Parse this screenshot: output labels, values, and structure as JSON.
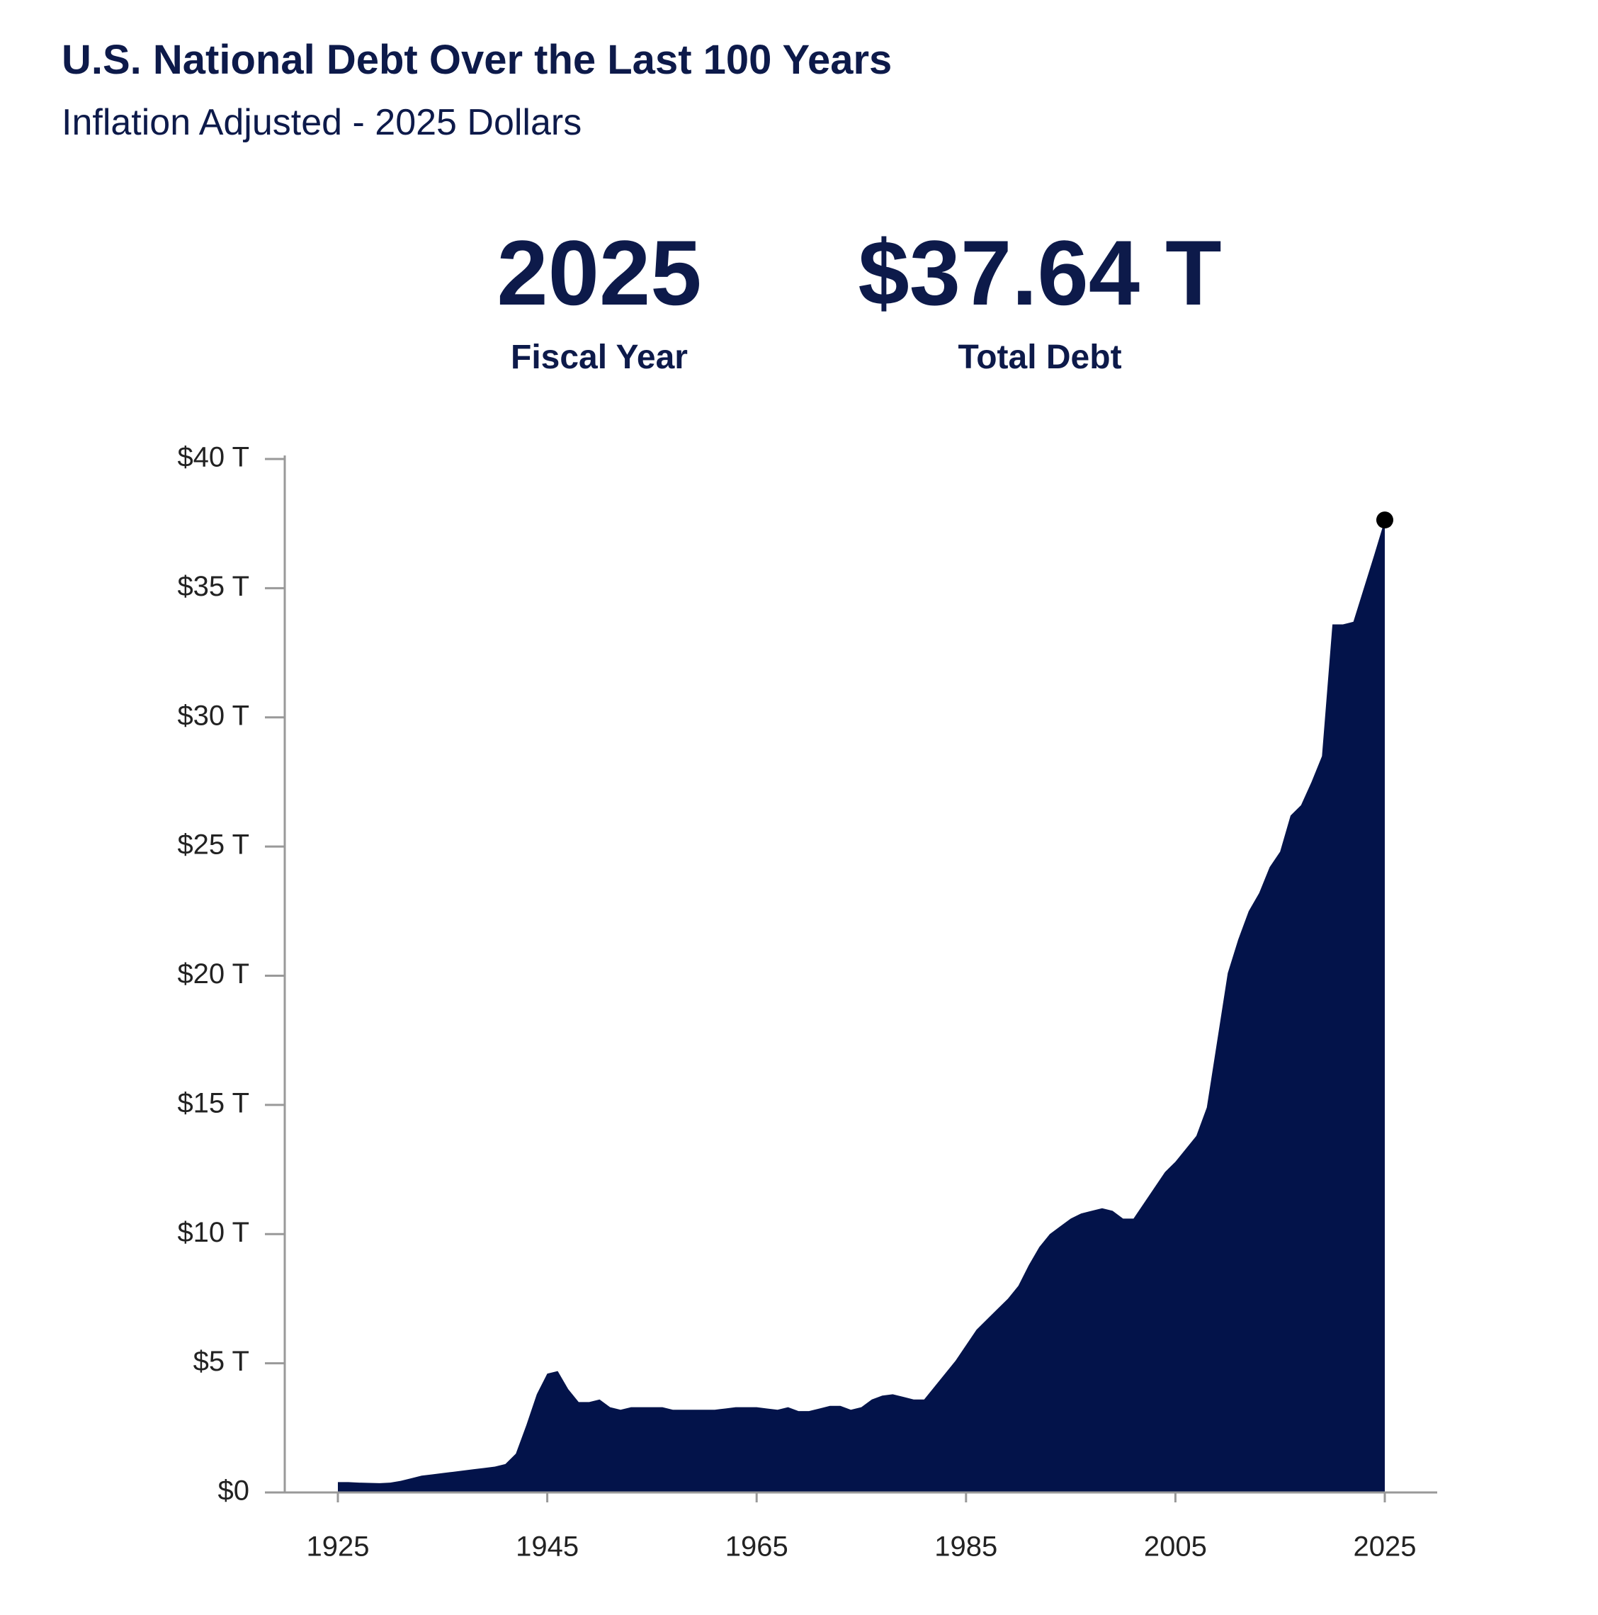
{
  "chart_data": {
    "type": "area",
    "title": "U.S. National Debt Over the Last 100 Years",
    "subtitle": "Inflation Adjusted - 2025 Dollars",
    "color": "#03134a",
    "callout": {
      "x": 2025,
      "value": 37.64,
      "value_label": "$37.64 T",
      "x_caption": "Fiscal Year",
      "value_caption": "Total Debt"
    },
    "x": [
      1925,
      1926,
      1927,
      1928,
      1929,
      1930,
      1931,
      1932,
      1933,
      1934,
      1935,
      1936,
      1937,
      1938,
      1939,
      1940,
      1941,
      1942,
      1943,
      1944,
      1945,
      1946,
      1947,
      1948,
      1949,
      1950,
      1951,
      1952,
      1953,
      1954,
      1955,
      1956,
      1957,
      1958,
      1959,
      1960,
      1961,
      1962,
      1963,
      1964,
      1965,
      1966,
      1967,
      1968,
      1969,
      1970,
      1971,
      1972,
      1973,
      1974,
      1975,
      1976,
      1977,
      1978,
      1979,
      1980,
      1981,
      1982,
      1983,
      1984,
      1985,
      1986,
      1987,
      1988,
      1989,
      1990,
      1991,
      1992,
      1993,
      1994,
      1995,
      1996,
      1997,
      1998,
      1999,
      2000,
      2001,
      2002,
      2003,
      2004,
      2005,
      2006,
      2007,
      2008,
      2009,
      2010,
      2011,
      2012,
      2013,
      2014,
      2015,
      2016,
      2017,
      2018,
      2019,
      2020,
      2021,
      2022,
      2023,
      2024,
      2025
    ],
    "values": [
      0.4,
      0.4,
      0.38,
      0.37,
      0.36,
      0.38,
      0.45,
      0.55,
      0.65,
      0.7,
      0.75,
      0.8,
      0.85,
      0.9,
      0.95,
      1.0,
      1.1,
      1.5,
      2.6,
      3.8,
      4.6,
      4.7,
      4.0,
      3.5,
      3.5,
      3.6,
      3.3,
      3.2,
      3.3,
      3.3,
      3.3,
      3.3,
      3.2,
      3.2,
      3.2,
      3.2,
      3.2,
      3.25,
      3.3,
      3.3,
      3.3,
      3.25,
      3.2,
      3.3,
      3.15,
      3.15,
      3.25,
      3.35,
      3.35,
      3.2,
      3.3,
      3.6,
      3.75,
      3.8,
      3.7,
      3.6,
      3.6,
      4.1,
      4.6,
      5.1,
      5.7,
      6.3,
      6.7,
      7.1,
      7.5,
      8.0,
      8.8,
      9.5,
      10.0,
      10.3,
      10.6,
      10.8,
      10.9,
      11.0,
      10.9,
      10.6,
      10.6,
      11.2,
      11.8,
      12.4,
      12.8,
      13.3,
      13.8,
      14.9,
      17.5,
      20.1,
      21.4,
      22.5,
      23.2,
      24.2,
      24.8,
      26.2,
      26.6,
      27.5,
      28.5,
      33.6,
      33.6,
      33.7,
      35.0,
      36.3,
      37.64
    ],
    "xlim": [
      1925,
      2025
    ],
    "xticks": [
      1925,
      1945,
      1965,
      1985,
      2005,
      2025
    ],
    "ylim": [
      0,
      40
    ],
    "yticks": [
      {
        "value": 0,
        "label": "$0"
      },
      {
        "value": 5,
        "label": "$5 T"
      },
      {
        "value": 10,
        "label": "$10 T"
      },
      {
        "value": 15,
        "label": "$15 T"
      },
      {
        "value": 20,
        "label": "$20 T"
      },
      {
        "value": 25,
        "label": "$25 T"
      },
      {
        "value": 30,
        "label": "$30 T"
      },
      {
        "value": 35,
        "label": "$35 T"
      },
      {
        "value": 40,
        "label": "$40 T"
      }
    ],
    "grid": false
  }
}
